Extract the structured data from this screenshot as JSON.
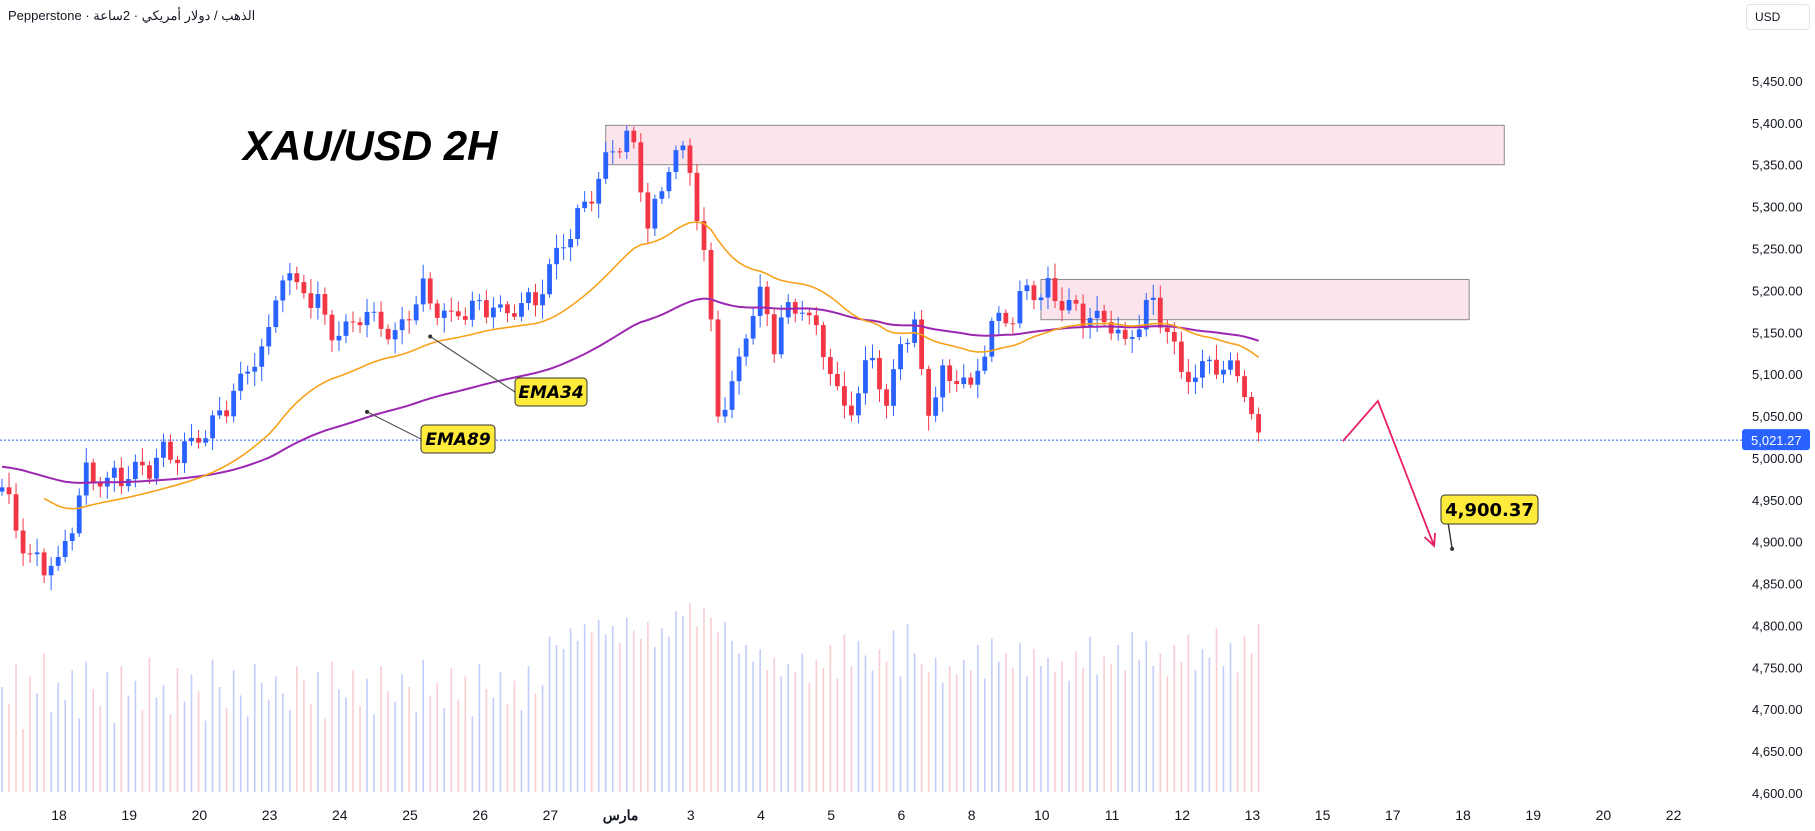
{
  "header": {
    "symbol_text": "Pepperstone · الذهب / دولار أمريكي · 2ساعة",
    "currency": "USD",
    "title": "XAU/USD 2H"
  },
  "colors": {
    "bull": "#2962ff",
    "bear": "#f23645",
    "ema34": "#f7a21b",
    "ema89": "#9c27b0",
    "zone_fill": "#fce4ec",
    "label_bg": "#ffeb3b",
    "arrow": "#e91e63"
  },
  "chart_data": {
    "type": "candlestick",
    "title": "",
    "ylim": [
      4600,
      5475
    ],
    "y_ticks": [
      "5,450.00",
      "5,400.00",
      "5,350.00",
      "5,300.00",
      "5,250.00",
      "5,200.00",
      "5,150.00",
      "5,100.00",
      "5,050.00",
      "5,000.00",
      "4,950.00",
      "4,900.00",
      "4,850.00",
      "4,800.00",
      "4,750.00",
      "4,700.00",
      "4,650.00",
      "4,600.00"
    ],
    "y_tick_values": [
      5450,
      5400,
      5350,
      5300,
      5250,
      5200,
      5150,
      5100,
      5050,
      5000,
      4950,
      4900,
      4850,
      4800,
      4750,
      4700,
      4650,
      4600
    ],
    "x_labels": [
      "18",
      "19",
      "20",
      "23",
      "24",
      "25",
      "26",
      "27",
      "مارس",
      "3",
      "4",
      "5",
      "6",
      "8",
      "10",
      "11",
      "12",
      "13",
      "15",
      "17",
      "18",
      "19",
      "20",
      "22"
    ],
    "x_label_bars": [
      0,
      10,
      20,
      30,
      40,
      50,
      60,
      70,
      80,
      90,
      100,
      110,
      120,
      130,
      140,
      150,
      160,
      170,
      180,
      190,
      200,
      210,
      220,
      230
    ],
    "last_price": "5,021.27",
    "last_price_value": 5021.27,
    "pivots": [
      [
        0,
        4965
      ],
      [
        4,
        4880
      ],
      [
        8,
        4870
      ],
      [
        12,
        4980
      ],
      [
        16,
        4975
      ],
      [
        20,
        4990
      ],
      [
        26,
        5010
      ],
      [
        30,
        5040
      ],
      [
        34,
        5090
      ],
      [
        38,
        5150
      ],
      [
        40,
        5225
      ],
      [
        44,
        5190
      ],
      [
        48,
        5145
      ],
      [
        52,
        5175
      ],
      [
        56,
        5150
      ],
      [
        60,
        5195
      ],
      [
        64,
        5165
      ],
      [
        68,
        5185
      ],
      [
        72,
        5175
      ],
      [
        76,
        5180
      ],
      [
        80,
        5260
      ],
      [
        84,
        5320
      ],
      [
        88,
        5380
      ],
      [
        90,
        5375
      ],
      [
        92,
        5280
      ],
      [
        94,
        5320
      ],
      [
        96,
        5370
      ],
      [
        98,
        5340
      ],
      [
        100,
        5250
      ],
      [
        102,
        5050
      ],
      [
        104,
        5090
      ],
      [
        106,
        5150
      ],
      [
        108,
        5190
      ],
      [
        110,
        5140
      ],
      [
        112,
        5180
      ],
      [
        114,
        5190
      ],
      [
        116,
        5150
      ],
      [
        118,
        5100
      ],
      [
        120,
        5060
      ],
      [
        122,
        5080
      ],
      [
        124,
        5130
      ],
      [
        126,
        5060
      ],
      [
        128,
        5140
      ],
      [
        130,
        5160
      ],
      [
        132,
        5060
      ],
      [
        134,
        5100
      ],
      [
        136,
        5100
      ],
      [
        138,
        5085
      ],
      [
        140,
        5130
      ],
      [
        142,
        5170
      ],
      [
        144,
        5160
      ],
      [
        146,
        5210
      ],
      [
        148,
        5195
      ],
      [
        150,
        5200
      ],
      [
        152,
        5185
      ],
      [
        154,
        5175
      ],
      [
        156,
        5165
      ],
      [
        158,
        5160
      ],
      [
        160,
        5130
      ],
      [
        162,
        5170
      ],
      [
        164,
        5180
      ],
      [
        166,
        5150
      ],
      [
        168,
        5100
      ],
      [
        170,
        5090
      ],
      [
        172,
        5120
      ],
      [
        174,
        5095
      ],
      [
        176,
        5105
      ],
      [
        178,
        5040
      ],
      [
        179,
        5020
      ]
    ],
    "volumes": [
      0.5,
      0.42,
      0.61,
      0.3,
      0.55,
      0.47,
      0.66,
      0.38,
      0.52,
      0.44,
      0.58,
      0.35,
      0.62,
      0.49,
      0.41,
      0.57,
      0.33,
      0.6,
      0.46,
      0.53,
      0.39,
      0.64,
      0.45,
      0.51,
      0.37,
      0.59,
      0.43,
      0.56,
      0.48,
      0.34,
      0.63,
      0.5,
      0.4,
      0.58,
      0.46,
      0.36,
      0.61,
      0.52,
      0.44,
      0.55,
      0.47,
      0.39,
      0.6,
      0.53,
      0.42,
      0.57,
      0.35,
      0.62,
      0.49,
      0.45,
      0.58,
      0.41,
      0.54,
      0.37,
      0.6,
      0.48,
      0.43,
      0.56,
      0.5,
      0.38,
      0.63,
      0.46,
      0.52,
      0.4,
      0.59,
      0.44,
      0.55,
      0.36,
      0.61,
      0.49,
      0.45,
      0.57,
      0.42,
      0.53,
      0.39,
      0.6,
      0.47,
      0.51,
      0.74,
      0.7,
      0.68,
      0.78,
      0.72,
      0.8,
      0.76,
      0.82,
      0.75,
      0.79,
      0.71,
      0.83,
      0.77,
      0.73,
      0.81,
      0.69,
      0.78,
      0.74,
      0.86,
      0.84,
      0.9,
      0.79,
      0.88,
      0.83,
      0.76,
      0.81,
      0.72,
      0.66,
      0.7,
      0.62,
      0.68,
      0.58,
      0.64,
      0.55,
      0.61,
      0.57,
      0.66,
      0.52,
      0.63,
      0.59,
      0.7,
      0.54,
      0.75,
      0.6,
      0.72,
      0.65,
      0.58,
      0.68,
      0.62,
      0.77,
      0.55,
      0.8,
      0.66,
      0.61,
      0.57,
      0.64,
      0.52,
      0.6,
      0.56,
      0.63,
      0.58,
      0.7,
      0.54,
      0.73,
      0.62,
      0.66,
      0.59,
      0.71,
      0.55,
      0.68,
      0.6,
      0.64,
      0.57,
      0.62,
      0.53,
      0.67,
      0.59,
      0.74,
      0.56,
      0.65,
      0.61,
      0.7,
      0.58,
      0.76,
      0.63,
      0.72,
      0.6,
      0.66,
      0.55,
      0.7,
      0.62,
      0.75,
      0.58,
      0.68,
      0.64,
      0.78,
      0.6,
      0.71,
      0.57,
      0.74,
      0.66,
      0.8,
      0.7,
      0.68,
      0.5
    ],
    "ema34_label": "EMA34",
    "ema89_label": "EMA89",
    "ema34_anchor": [
      61,
      5145
    ],
    "ema89_anchor": [
      52,
      5055
    ],
    "zones": [
      {
        "x_start": 86,
        "x_end": 214,
        "y_low": 5350,
        "y_high": 5397
      },
      {
        "x_start": 148,
        "x_end": 209,
        "y_low": 5165,
        "y_high": 5213
      }
    ],
    "projection_path": [
      [
        191,
        5020
      ],
      [
        196,
        5068
      ],
      [
        204,
        4895
      ]
    ],
    "target_label": "4,900.37",
    "target_anchor": [
      206,
      4895
    ]
  }
}
